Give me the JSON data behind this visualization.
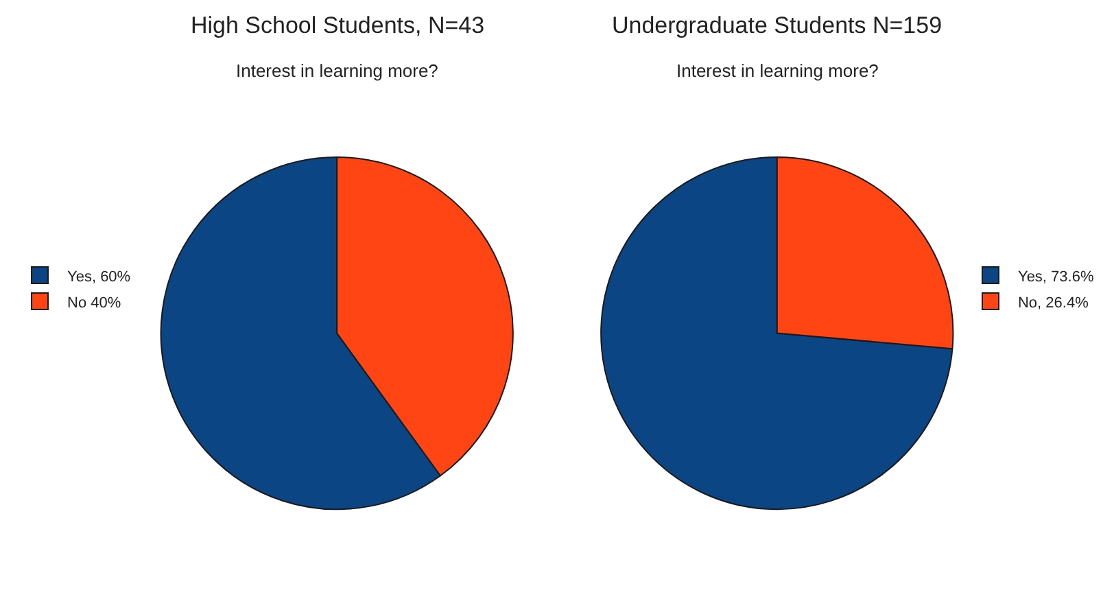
{
  "chart_data": [
    {
      "type": "pie",
      "title": "High School Students, N=43",
      "subtitle": "Interest in learning more?",
      "categories": [
        "Yes, 60%",
        "No 40%"
      ],
      "values": [
        60,
        40
      ],
      "colors": [
        "#0c4584",
        "#ff4513"
      ],
      "legend": "left"
    },
    {
      "type": "pie",
      "title": "Undergraduate Students N=159",
      "subtitle": "Interest in learning more?",
      "categories": [
        "Yes, 73.6%",
        "No, 26.4%"
      ],
      "values": [
        73.6,
        26.4
      ],
      "colors": [
        "#0c4584",
        "#ff4513"
      ],
      "legend": "right"
    }
  ]
}
